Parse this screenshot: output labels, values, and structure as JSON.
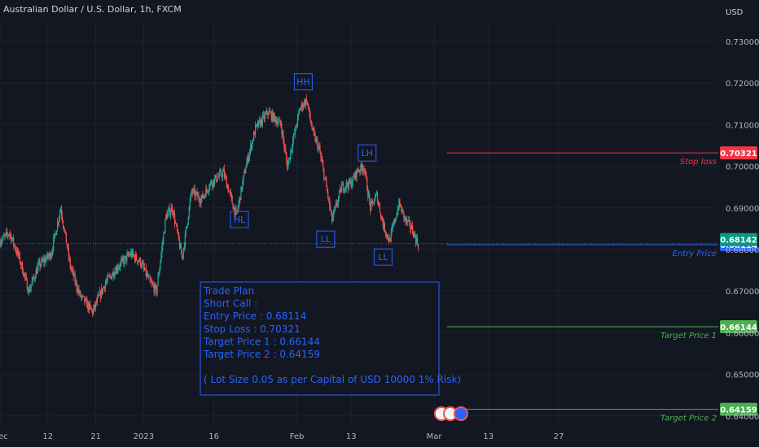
{
  "header": {
    "title": "Australian Dollar / U.S. Dollar, 1h, FXCM",
    "currency": "USD"
  },
  "colors": {
    "background": "#131722",
    "grid": "#1e222d",
    "up": "#26a69a",
    "down": "#ef5350",
    "annotation": "#2962ff",
    "stop": "#f23645",
    "target": "#4caf50"
  },
  "chart_data": {
    "type": "candlestick",
    "title": "Australian Dollar / U.S. Dollar, 1h, FXCM",
    "ylim": [
      0.638,
      0.7345
    ],
    "y_ticks": [
      "0.73000",
      "0.72000",
      "0.71000",
      "0.70000",
      "0.69000",
      "0.68000",
      "0.67000",
      "0.66000",
      "0.65000",
      "0.64000"
    ],
    "x_ticks": [
      "Dec",
      "12",
      "21",
      "2023",
      "16",
      "Feb",
      "13",
      "Mar",
      "13",
      "27"
    ],
    "x_tick_index": [
      0,
      15,
      30,
      45,
      67,
      93,
      110,
      136,
      153,
      175
    ],
    "x_range": [
      0,
      225
    ],
    "price_path": [
      [
        0,
        0.682
      ],
      [
        3,
        0.684
      ],
      [
        6,
        0.678
      ],
      [
        9,
        0.67
      ],
      [
        12,
        0.676
      ],
      [
        16,
        0.679
      ],
      [
        19,
        0.69
      ],
      [
        22,
        0.676
      ],
      [
        25,
        0.669
      ],
      [
        29,
        0.665
      ],
      [
        33,
        0.672
      ],
      [
        37,
        0.676
      ],
      [
        41,
        0.679
      ],
      [
        44,
        0.677
      ],
      [
        47,
        0.672
      ],
      [
        49,
        0.67
      ],
      [
        52,
        0.688
      ],
      [
        54,
        0.69
      ],
      [
        57,
        0.678
      ],
      [
        58,
        0.683
      ],
      [
        60,
        0.694
      ],
      [
        63,
        0.692
      ],
      [
        66,
        0.696
      ],
      [
        70,
        0.6985
      ],
      [
        74,
        0.688
      ],
      [
        77,
        0.7
      ],
      [
        80,
        0.709
      ],
      [
        84,
        0.713
      ],
      [
        88,
        0.71
      ],
      [
        90,
        0.7
      ],
      [
        94,
        0.714
      ],
      [
        96,
        0.716
      ],
      [
        98,
        0.708
      ],
      [
        100,
        0.704
      ],
      [
        102,
        0.696
      ],
      [
        104,
        0.687
      ],
      [
        107,
        0.695
      ],
      [
        110,
        0.696
      ],
      [
        112,
        0.699
      ],
      [
        114,
        0.7
      ],
      [
        116,
        0.69
      ],
      [
        118,
        0.693
      ],
      [
        120,
        0.686
      ],
      [
        122,
        0.682
      ],
      [
        125,
        0.691
      ],
      [
        127,
        0.687
      ],
      [
        129,
        0.685
      ],
      [
        131,
        0.6811
      ]
    ],
    "annotations": [
      {
        "label": "HH",
        "x": 95,
        "price": 0.7203
      },
      {
        "label": "HL",
        "x": 75,
        "price": 0.6872
      },
      {
        "label": "LH",
        "x": 115,
        "price": 0.7032
      },
      {
        "label": "LL",
        "x": 102,
        "price": 0.6825
      },
      {
        "label": "LL",
        "x": 120,
        "price": 0.6782
      }
    ],
    "levels": [
      {
        "name": "Stop loss",
        "price": 0.70321,
        "tag": "0.70321",
        "color": "#f23645"
      },
      {
        "name": "Entry Price",
        "price": 0.68114,
        "tag": "0.68114",
        "color": "#2962ff"
      },
      {
        "name": "Target Price 1",
        "price": 0.66144,
        "tag": "0.66144",
        "color": "#4caf50"
      },
      {
        "name": "Target Price 2",
        "price": 0.64159,
        "tag": "0.64159",
        "color": "#4caf50"
      }
    ],
    "current_price": {
      "price": 0.68142,
      "tag": "0.68142",
      "color": "#089981"
    }
  },
  "trade_plan": {
    "lines": [
      "Trade Plan",
      "Short Call :",
      "Entry Price : 0.68114",
      "Stop Loss : 0.70321",
      "Target Price 1 : 0.66144",
      "Target Price 2 : 0.64159",
      "",
      "( Lot Size 0.05 as per Capital of USD 10000 1% Risk)"
    ]
  }
}
